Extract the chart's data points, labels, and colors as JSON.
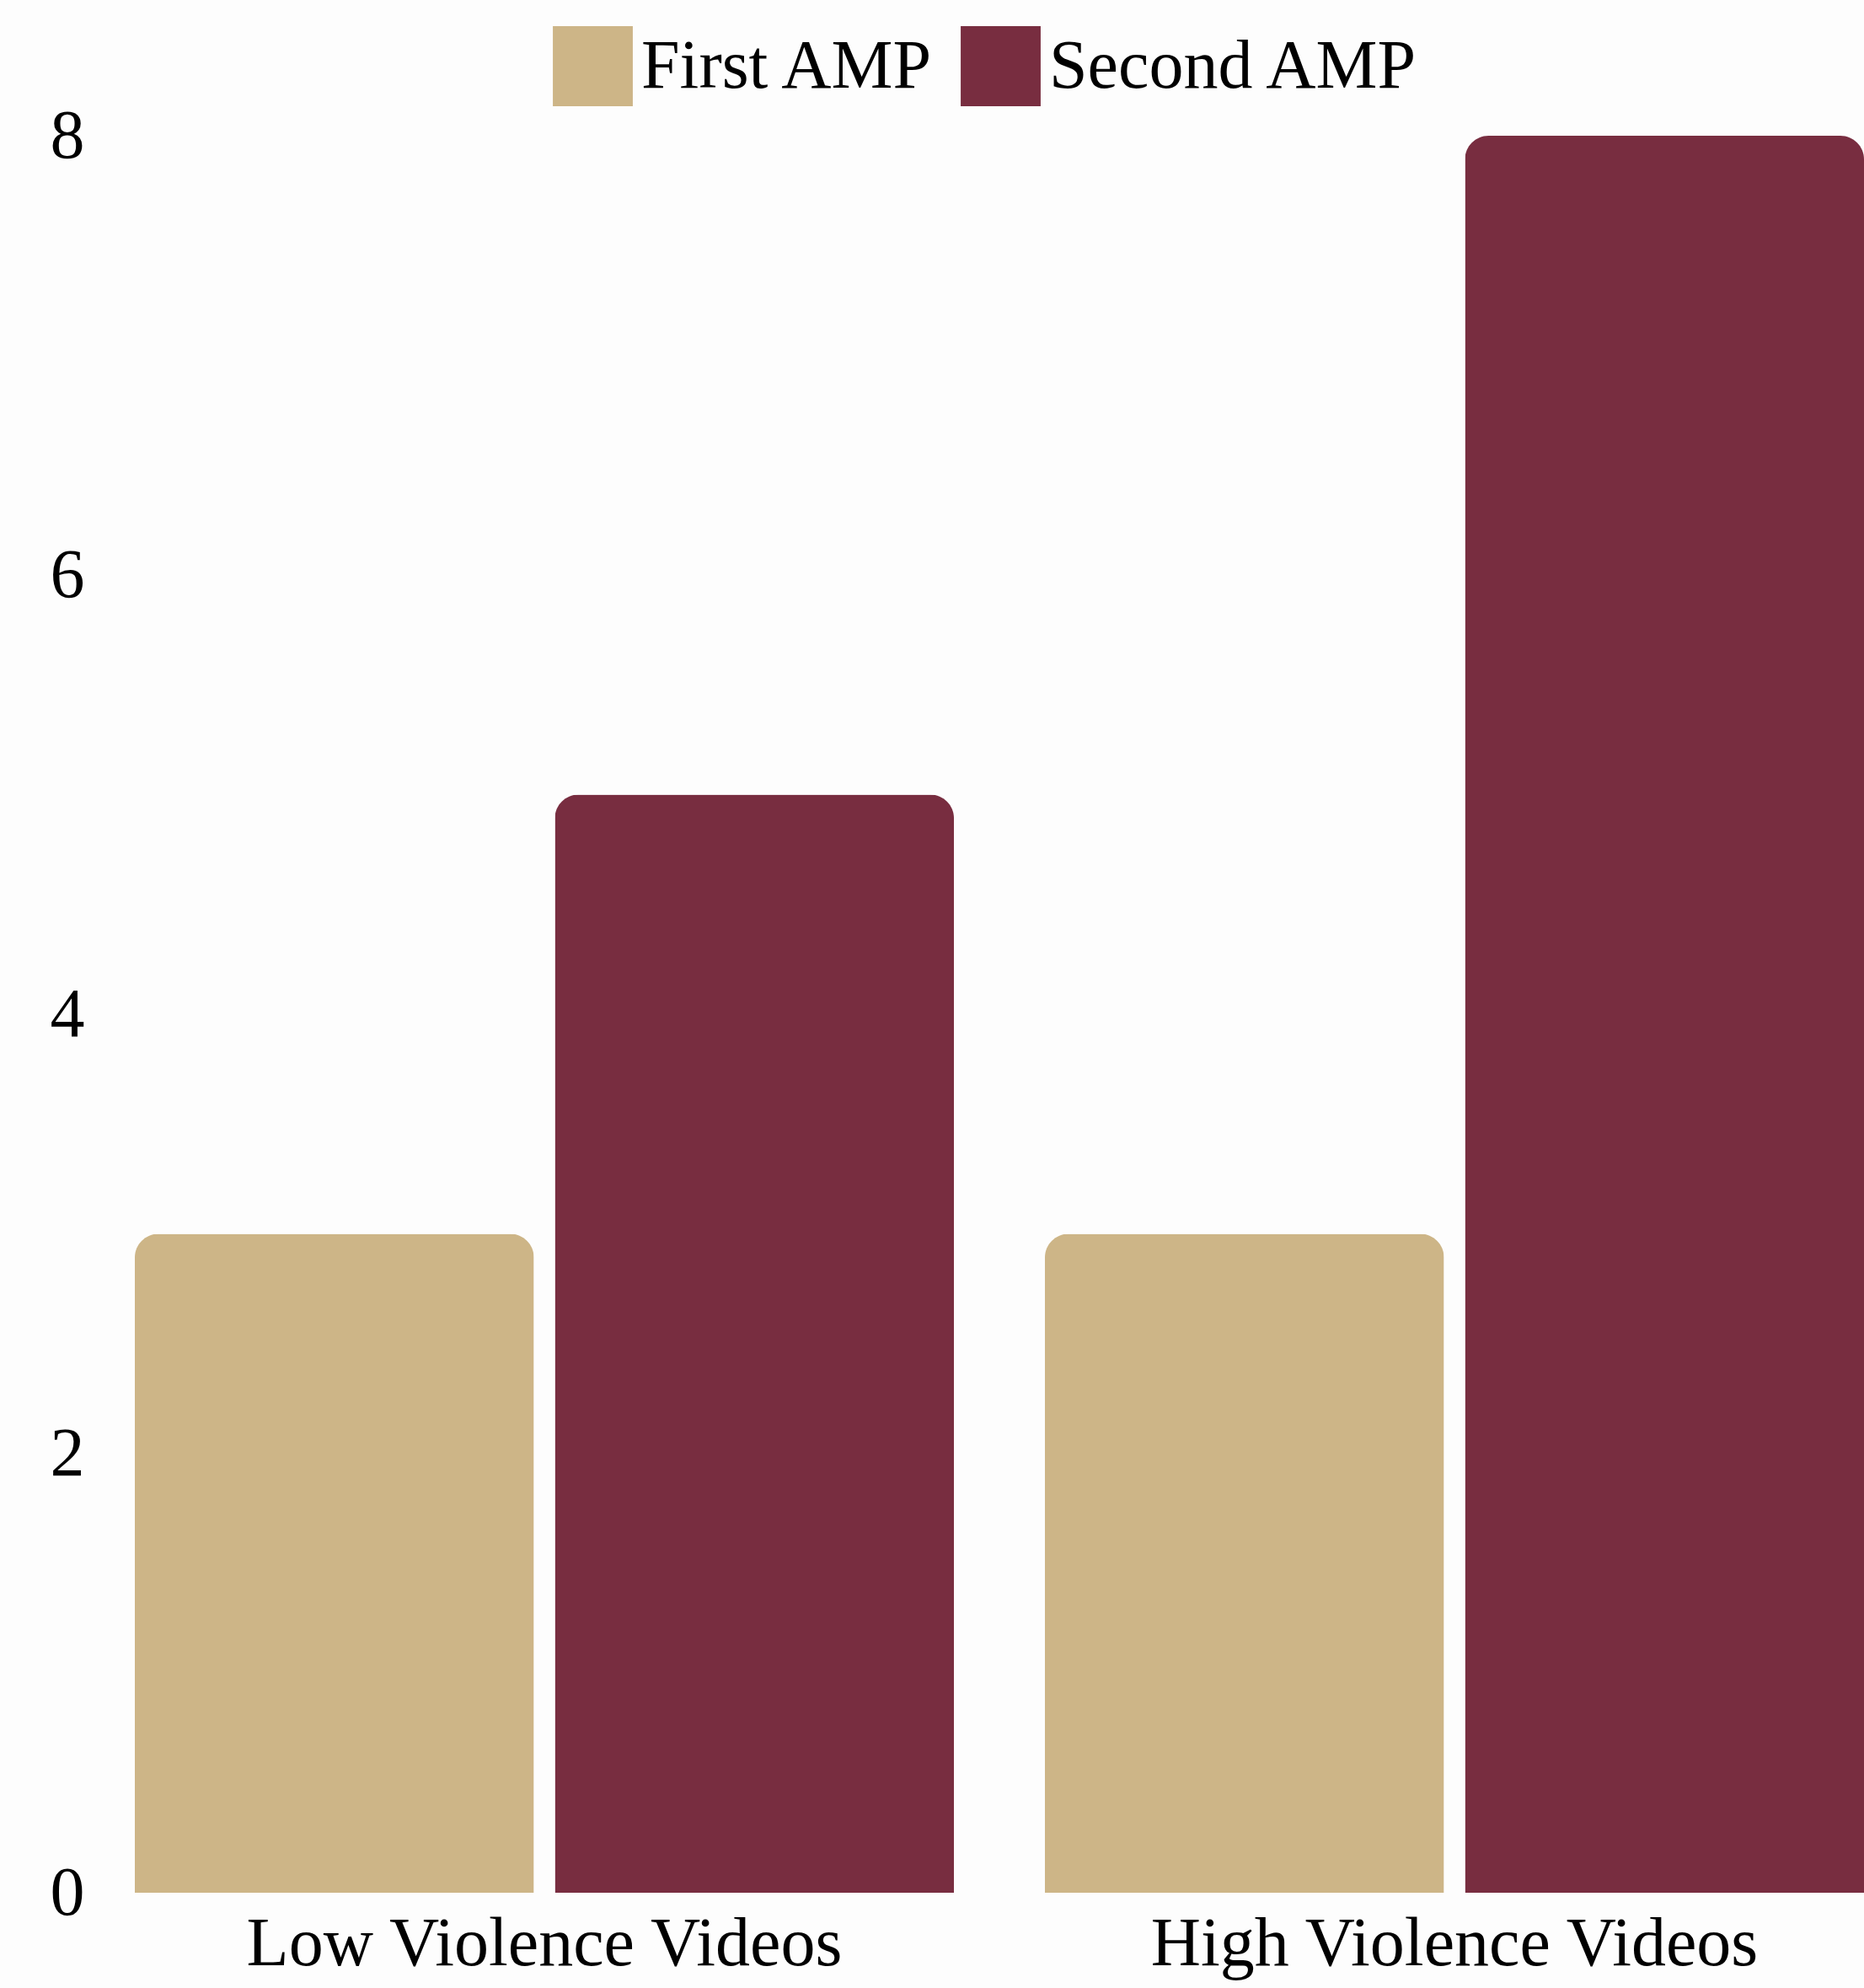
{
  "chart_data": {
    "type": "bar",
    "categories": [
      "Low Violence Videos",
      "High Violence Videos"
    ],
    "series": [
      {
        "name": "First AMP",
        "color": "#cdb587",
        "values": [
          3,
          3
        ]
      },
      {
        "name": "Second AMP",
        "color": "#782d40",
        "values": [
          5,
          8
        ]
      }
    ],
    "ylim": [
      0,
      8
    ],
    "yticks": [
      0,
      2,
      4,
      6,
      8
    ],
    "legend": "top"
  }
}
